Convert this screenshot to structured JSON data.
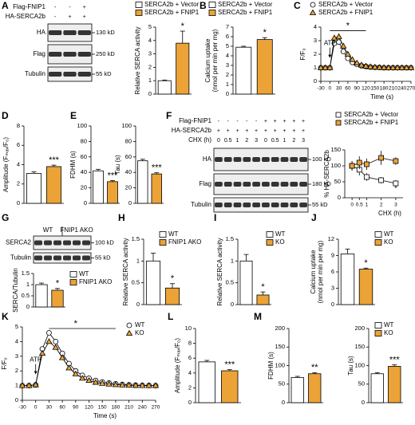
{
  "panel_labels": [
    "A",
    "B",
    "C",
    "D",
    "E",
    "F",
    "G",
    "H",
    "I",
    "J",
    "K",
    "L",
    "M"
  ],
  "blots": [
    {
      "rows": [
        {
          "label": "Flag-FNIP1",
          "signs": [
            "-",
            "-",
            "+"
          ]
        },
        {
          "label": "HA-SERCA2b",
          "signs": [
            "-",
            "+",
            "+"
          ]
        }
      ],
      "bands": [
        {
          "name": "HA",
          "size": "130 kD"
        },
        {
          "name": "Flag",
          "size": "250 kD"
        },
        {
          "name": "Tubulin",
          "size": "55 kD"
        }
      ]
    },
    {
      "rows": [
        {
          "label": "Flag-FNIP1",
          "signs": [
            "-",
            "-",
            "-",
            "-",
            "-",
            "+",
            "+",
            "+",
            "+",
            "+"
          ]
        },
        {
          "label": "HA-SERCA2b",
          "signs": [
            "+",
            "+",
            "+",
            "+",
            "+",
            "+",
            "+",
            "+",
            "+",
            "+"
          ]
        },
        {
          "label": "CHX (h)",
          "signs": [
            "0",
            "0.5",
            "1",
            "2",
            "3",
            "0",
            "0.5",
            "1",
            "2",
            "3"
          ]
        }
      ],
      "bands": [
        {
          "name": "HA",
          "size": "100 kD"
        },
        {
          "name": "Flag",
          "size": "180 kD"
        },
        {
          "name": "Tubulin",
          "size": "55 kD"
        }
      ]
    },
    {
      "groups": [
        "WT",
        "FNIP1 AKO"
      ],
      "bands": [
        {
          "name": "SERCA2",
          "size": "100 kD"
        },
        {
          "name": "Tubulin",
          "size": "55 kD"
        }
      ]
    }
  ],
  "chart_data": [
    {
      "type": "bar",
      "ylabel": "Relative SERCA activity",
      "ylim": [
        0,
        5
      ],
      "yticks": [
        0,
        1,
        2,
        3,
        4,
        5
      ],
      "legend": true,
      "annotation": "*",
      "series": [
        {
          "name": "SERCA2b + Vector",
          "color": "#ffffff",
          "values": [
            1
          ],
          "errors": [
            0.05
          ]
        },
        {
          "name": "SERCA2b + FNIP1",
          "color": "#eba337",
          "values": [
            3.8
          ],
          "errors": [
            0.9
          ]
        }
      ]
    },
    {
      "type": "bar",
      "ylabel": [
        "Calcium uptake",
        "(nmol per min per mg)"
      ],
      "ylim": [
        0,
        7
      ],
      "yticks": [
        0,
        1,
        2,
        3,
        4,
        5,
        6,
        7
      ],
      "legend": true,
      "annotation": "*",
      "series": [
        {
          "name": "SERCA2b + Vector",
          "color": "#ffffff",
          "values": [
            4.9
          ],
          "errors": [
            0.1
          ]
        },
        {
          "name": "SERCA2b + FNIP1",
          "color": "#eba337",
          "values": [
            5.7
          ],
          "errors": [
            0.2
          ]
        }
      ]
    },
    {
      "type": "line",
      "ylabel": "F/F₀",
      "xlabel": "Time (s)",
      "xlim": [
        -30,
        270
      ],
      "xticks": [
        -30,
        0,
        30,
        60,
        90,
        120,
        150,
        180,
        210,
        240,
        270
      ],
      "ylim": [
        0,
        4
      ],
      "yticks": [
        0,
        1,
        2,
        3,
        4
      ],
      "legend": true,
      "annotations": [
        "ATP",
        "*"
      ],
      "x": [
        -30,
        -15,
        0,
        15,
        30,
        45,
        60,
        75,
        90,
        105,
        120,
        135,
        150,
        165,
        180,
        195,
        210,
        225,
        240,
        255,
        270
      ],
      "series": [
        {
          "name": "SERCA2b + Vector",
          "color": "#ffffff",
          "marker": "circle",
          "values": [
            1,
            1,
            1,
            2.8,
            2.9,
            2.2,
            1.7,
            1.4,
            1.25,
            1.15,
            1.1,
            1.05,
            1.03,
            1.02,
            1.0,
            1.0,
            1.0,
            1.0,
            1.0,
            1.0,
            1.0
          ]
        },
        {
          "name": "SERCA2b + FNIP1",
          "color": "#eba337",
          "marker": "triangle",
          "values": [
            1,
            1,
            1,
            3.2,
            3.3,
            2.6,
            2.0,
            1.6,
            1.35,
            1.2,
            1.12,
            1.07,
            1.04,
            1.02,
            1.01,
            1,
            1,
            1,
            1,
            1,
            1
          ]
        }
      ]
    },
    {
      "type": "bar",
      "ylabel": "Amplitude (Fₘₐₓ/F₀)",
      "ylim": [
        0,
        8
      ],
      "yticks": [
        0,
        2,
        4,
        6,
        8
      ],
      "annotation": "***",
      "series": [
        {
          "color": "#ffffff",
          "values": [
            3.1
          ],
          "errors": [
            0.15
          ]
        },
        {
          "color": "#eba337",
          "values": [
            3.8
          ],
          "errors": [
            0.15
          ]
        }
      ]
    },
    {
      "type": "bar",
      "ylabel": "FDHM (s)",
      "ylim": [
        0,
        100
      ],
      "yticks": [
        0,
        20,
        40,
        60,
        80,
        100
      ],
      "annotation": "***",
      "series": [
        {
          "color": "#ffffff",
          "values": [
            42
          ],
          "errors": [
            2
          ]
        },
        {
          "color": "#eba337",
          "values": [
            28
          ],
          "errors": [
            1.5
          ]
        }
      ]
    },
    {
      "type": "bar",
      "ylabel": "Tau (s)",
      "ylim": [
        0,
        100
      ],
      "yticks": [
        0,
        20,
        40,
        60,
        80,
        100
      ],
      "annotation": "***",
      "series": [
        {
          "color": "#ffffff",
          "values": [
            55
          ],
          "errors": [
            2
          ]
        },
        {
          "color": "#eba337",
          "values": [
            38
          ],
          "errors": [
            1.5
          ]
        }
      ]
    },
    {
      "type": "line",
      "ylabel": "% HA-SERCA2b",
      "xlabel": "CHX (h)",
      "xlim": [
        -0.5,
        3.5
      ],
      "xticks": [
        0,
        0.5,
        1,
        2,
        3
      ],
      "ylim": [
        0,
        150
      ],
      "yticks": [
        0,
        50,
        100,
        150
      ],
      "legend": true,
      "annotations": [
        "*"
      ],
      "x": [
        0,
        0.5,
        1,
        2,
        3
      ],
      "series": [
        {
          "name": "SERCA2b + Vector",
          "color": "#ffffff",
          "marker": "square",
          "values": [
            100,
            88,
            65,
            55,
            45
          ],
          "errors": [
            15,
            18,
            12,
            10,
            10
          ]
        },
        {
          "name": "SERCA2b + FNIP1",
          "color": "#eba337",
          "marker": "square",
          "values": [
            100,
            110,
            105,
            125,
            115
          ],
          "errors": [
            15,
            20,
            18,
            22,
            12
          ]
        }
      ]
    },
    {
      "type": "bar",
      "ylabel": "SERCA/Tubulin",
      "ylim": [
        0,
        1.5
      ],
      "yticks": [
        0,
        0.5,
        1,
        1.5
      ],
      "legend": true,
      "annotation": "*",
      "series": [
        {
          "name": "WT",
          "color": "#ffffff",
          "values": [
            1
          ],
          "errors": [
            0.07
          ]
        },
        {
          "name": "FNIP1 AKO",
          "color": "#eba337",
          "values": [
            0.75
          ],
          "errors": [
            0.08
          ]
        }
      ]
    },
    {
      "type": "bar",
      "ylabel": "Relative SERCA activity",
      "ylim": [
        0,
        1.5
      ],
      "yticks": [
        0,
        0.5,
        1,
        1.5
      ],
      "legend": true,
      "annotation": "*",
      "series": [
        {
          "name": "WT",
          "color": "#ffffff",
          "values": [
            1
          ],
          "errors": [
            0.18
          ]
        },
        {
          "name": "FNIP1 AKO",
          "color": "#eba337",
          "values": [
            0.38
          ],
          "errors": [
            0.1
          ]
        }
      ]
    },
    {
      "type": "bar",
      "ylabel": "Relative SERCA activity",
      "ylim": [
        0,
        1.5
      ],
      "yticks": [
        0,
        0.5,
        1,
        1.5
      ],
      "legend": true,
      "annotation": "*",
      "series": [
        {
          "name": "WT",
          "color": "#ffffff",
          "values": [
            1
          ],
          "errors": [
            0.15
          ]
        },
        {
          "name": "KO",
          "color": "#eba337",
          "values": [
            0.22
          ],
          "errors": [
            0.07
          ]
        }
      ]
    },
    {
      "type": "bar",
      "ylabel": [
        "Calcium uptake",
        "(nmol per min per mg)"
      ],
      "ylim": [
        0,
        12
      ],
      "yticks": [
        0,
        3,
        6,
        9,
        12
      ],
      "legend": true,
      "annotation": "*",
      "series": [
        {
          "name": "WT",
          "color": "#ffffff",
          "values": [
            9.3
          ],
          "errors": [
            0.9
          ]
        },
        {
          "name": "KO",
          "color": "#eba337",
          "values": [
            6.5
          ],
          "errors": [
            0.2
          ]
        }
      ]
    },
    {
      "type": "line",
      "ylabel": "F/F₀",
      "xlabel": "Time (s)",
      "xlim": [
        -30,
        270
      ],
      "xticks": [
        -30,
        0,
        30,
        60,
        90,
        120,
        150,
        180,
        210,
        240,
        270
      ],
      "ylim": [
        0,
        5
      ],
      "yticks": [
        0,
        1,
        2,
        3,
        4,
        5
      ],
      "legend": true,
      "annotations": [
        "ATP",
        "*"
      ],
      "x": [
        -30,
        -15,
        0,
        15,
        30,
        45,
        60,
        75,
        90,
        105,
        120,
        135,
        150,
        165,
        180,
        195,
        210,
        225,
        240,
        255,
        270
      ],
      "series": [
        {
          "name": "WT",
          "color": "#ffffff",
          "marker": "circle",
          "values": [
            1,
            1,
            1.05,
            3.5,
            4.6,
            4.0,
            3.2,
            2.5,
            2.0,
            1.7,
            1.5,
            1.35,
            1.25,
            1.18,
            1.12,
            1.08,
            1.05,
            1.03,
            1.02,
            1.01,
            1.0
          ]
        },
        {
          "name": "KO",
          "color": "#eba337",
          "marker": "triangle",
          "values": [
            1,
            1,
            1.05,
            3.2,
            4.0,
            3.6,
            2.9,
            2.2,
            1.8,
            1.5,
            1.35,
            1.22,
            1.15,
            1.1,
            1.06,
            1.04,
            1.02,
            1.01,
            1,
            1,
            1
          ]
        }
      ]
    },
    {
      "type": "bar",
      "ylabel": "Amplitude (Fₘₐₓ/F₀)",
      "ylim": [
        0,
        10
      ],
      "yticks": [
        0,
        2,
        4,
        6,
        8,
        10
      ],
      "annotation": "***",
      "series": [
        {
          "color": "#ffffff",
          "values": [
            5.5
          ],
          "errors": [
            0.2
          ]
        },
        {
          "color": "#eba337",
          "values": [
            4.3
          ],
          "errors": [
            0.15
          ]
        }
      ]
    },
    {
      "type": "bar",
      "ylabel": "FDHM (s)",
      "ylim": [
        0,
        200
      ],
      "yticks": [
        0,
        50,
        100,
        150,
        200
      ],
      "annotation": "**",
      "series": [
        {
          "color": "#ffffff",
          "values": [
            68
          ],
          "errors": [
            3
          ]
        },
        {
          "color": "#eba337",
          "values": [
            78
          ],
          "errors": [
            3
          ]
        }
      ]
    },
    {
      "type": "bar",
      "ylabel": "Tau (s)",
      "ylim": [
        0,
        200
      ],
      "yticks": [
        0,
        50,
        100,
        150,
        200
      ],
      "legend": true,
      "annotation": "***",
      "series": [
        {
          "name": "WT",
          "color": "#ffffff",
          "values": [
            78
          ],
          "errors": [
            3
          ]
        },
        {
          "name": "KO",
          "color": "#eba337",
          "values": [
            98
          ],
          "errors": [
            4
          ]
        }
      ]
    }
  ]
}
